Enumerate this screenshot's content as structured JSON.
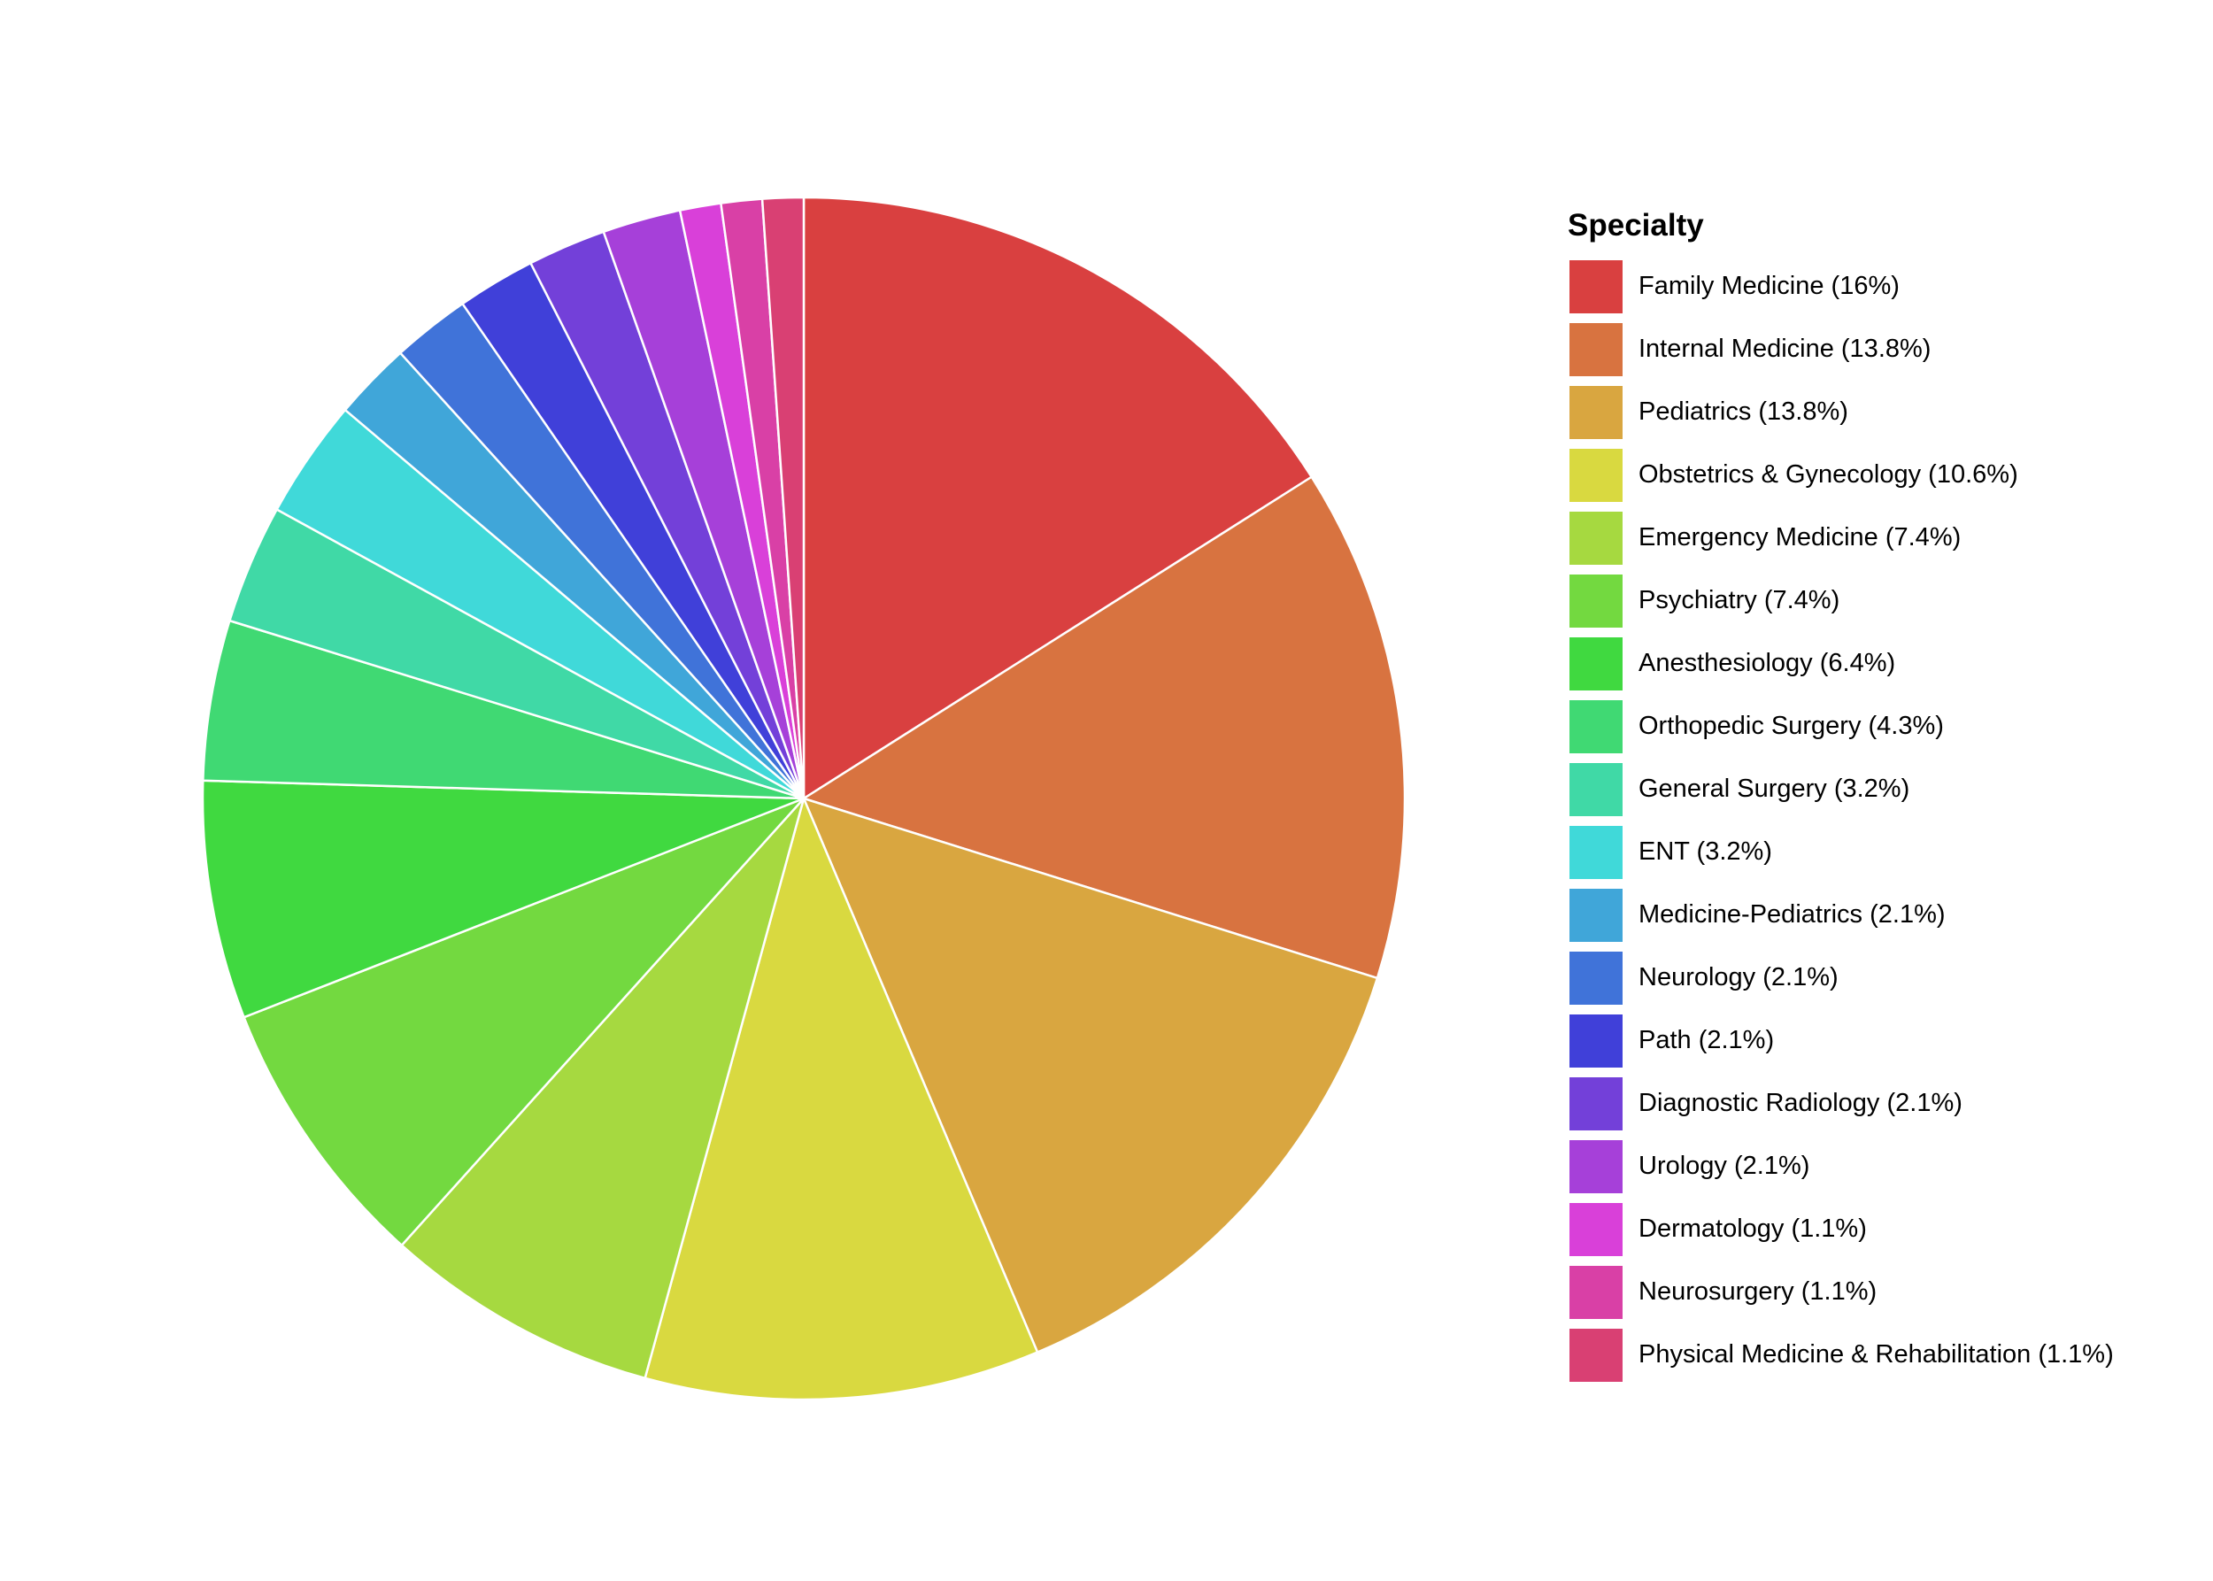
{
  "chart_data": {
    "type": "pie",
    "direction": "clockwise",
    "start": "12 o'clock",
    "legend": {
      "title": "Specialty",
      "position": "right"
    },
    "slices": [
      {
        "name": "Family Medicine",
        "label": "Family Medicine (16%)",
        "value": 16.0,
        "color": "#D94040"
      },
      {
        "name": "Internal Medicine",
        "label": "Internal Medicine (13.8%)",
        "value": 13.8,
        "color": "#D87340"
      },
      {
        "name": "Pediatrics",
        "label": "Pediatrics (13.8%)",
        "value": 13.8,
        "color": "#D9A640"
      },
      {
        "name": "Obstetrics & Gynecology",
        "label": "Obstetrics & Gynecology (10.6%)",
        "value": 10.6,
        "color": "#D9D940"
      },
      {
        "name": "Emergency Medicine",
        "label": "Emergency Medicine (7.4%)",
        "value": 7.4,
        "color": "#A6D940"
      },
      {
        "name": "Psychiatry",
        "label": "Psychiatry (7.4%)",
        "value": 7.4,
        "color": "#73D940"
      },
      {
        "name": "Anesthesiology",
        "label": "Anesthesiology (6.4%)",
        "value": 6.4,
        "color": "#40D940"
      },
      {
        "name": "Orthopedic Surgery",
        "label": "Orthopedic Surgery (4.3%)",
        "value": 4.3,
        "color": "#40D973"
      },
      {
        "name": "General Surgery",
        "label": "General Surgery (3.2%)",
        "value": 3.2,
        "color": "#40D9A6"
      },
      {
        "name": "ENT",
        "label": "ENT (3.2%)",
        "value": 3.2,
        "color": "#40D9D9"
      },
      {
        "name": "Medicine-Pediatrics",
        "label": "Medicine-Pediatrics (2.1%)",
        "value": 2.1,
        "color": "#40A6D9"
      },
      {
        "name": "Neurology",
        "label": "Neurology (2.1%)",
        "value": 2.1,
        "color": "#4073D9"
      },
      {
        "name": "Path",
        "label": "Path (2.1%)",
        "value": 2.1,
        "color": "#4040D9"
      },
      {
        "name": "Diagnostic Radiology",
        "label": "Diagnostic Radiology (2.1%)",
        "value": 2.1,
        "color": "#7340D9"
      },
      {
        "name": "Urology",
        "label": "Urology (2.1%)",
        "value": 2.1,
        "color": "#A640D9"
      },
      {
        "name": "Dermatology",
        "label": "Dermatology (1.1%)",
        "value": 1.1,
        "color": "#D940D9"
      },
      {
        "name": "Neurosurgery",
        "label": "Neurosurgery (1.1%)",
        "value": 1.1,
        "color": "#D940A6"
      },
      {
        "name": "Physical Medicine & Rehabilitation",
        "label": "Physical Medicine & Rehabilitation (1.1%)",
        "value": 1.1,
        "color": "#D94073"
      }
    ]
  }
}
